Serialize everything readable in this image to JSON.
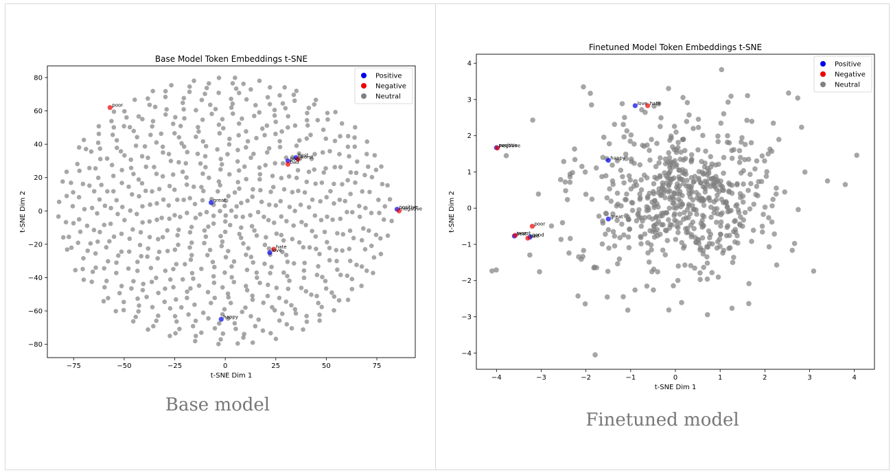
{
  "captions": {
    "left": "Base model",
    "right": "Finetuned model"
  },
  "colors": {
    "positive": "#0000ee",
    "negative": "#ee0000",
    "neutral": "#808080"
  },
  "chart_data": [
    {
      "type": "scatter",
      "title": "Base Model Token Embeddings t-SNE",
      "xlabel": "t-SNE Dim 1",
      "ylabel": "t-SNE Dim 2",
      "xlim": [
        -88,
        94
      ],
      "ylim": [
        -88,
        87
      ],
      "xticks": [
        -75,
        -50,
        -25,
        0,
        25,
        50,
        75
      ],
      "yticks": [
        -80,
        -60,
        -40,
        -20,
        0,
        20,
        40,
        60,
        80
      ],
      "legend": {
        "position": "top-right",
        "entries": [
          "Positive",
          "Negative",
          "Neutral"
        ]
      },
      "neutral_cloud": {
        "shape": "concentric-rings",
        "center": [
          0,
          0
        ],
        "radius_x": 82,
        "radius_y": 80,
        "count": 620
      },
      "highlighted": [
        {
          "label": "poor",
          "class": "Negative",
          "x": -57,
          "y": 62
        },
        {
          "label": "best",
          "class": "Positive",
          "x": 35,
          "y": 32
        },
        {
          "label": "worst",
          "class": "Negative",
          "x": 36,
          "y": 31
        },
        {
          "label": "good",
          "class": "Positive",
          "x": 31,
          "y": 30
        },
        {
          "label": "bad",
          "class": "Negative",
          "x": 31,
          "y": 28
        },
        {
          "label": "great",
          "class": "Positive",
          "x": -7,
          "y": 5
        },
        {
          "label": "positive",
          "class": "Positive",
          "x": 85,
          "y": 1
        },
        {
          "label": "negative",
          "class": "Negative",
          "x": 86,
          "y": 0
        },
        {
          "label": "hate",
          "class": "Negative",
          "x": 24,
          "y": -23
        },
        {
          "label": "love",
          "class": "Positive",
          "x": 22,
          "y": -25
        },
        {
          "label": "happy",
          "class": "Positive",
          "x": -2,
          "y": -65
        }
      ]
    },
    {
      "type": "scatter",
      "title": "Finetuned Model Token Embeddings t-SNE",
      "xlabel": "t-SNE Dim 1",
      "ylabel": "t-SNE Dim 2",
      "xlim": [
        -4.45,
        4.45
      ],
      "ylim": [
        -4.45,
        4.25
      ],
      "xticks": [
        -4,
        -3,
        -2,
        -1,
        0,
        1,
        2,
        3,
        4
      ],
      "yticks": [
        -4,
        -3,
        -2,
        -1,
        0,
        1,
        2,
        3,
        4
      ],
      "legend": {
        "position": "top-right",
        "entries": [
          "Positive",
          "Negative",
          "Neutral"
        ]
      },
      "neutral_cloud": {
        "shape": "gaussian-blob",
        "center": [
          0.3,
          0.4
        ],
        "count": 640
      },
      "highlighted": [
        {
          "label": "love",
          "class": "Positive",
          "x": -0.9,
          "y": 2.83
        },
        {
          "label": "hate",
          "class": "Negative",
          "x": -0.62,
          "y": 2.83
        },
        {
          "label": "positive",
          "class": "Positive",
          "x": -4.0,
          "y": 1.67
        },
        {
          "label": "negative",
          "class": "Negative",
          "x": -3.98,
          "y": 1.66
        },
        {
          "label": "happy",
          "class": "Positive",
          "x": -1.5,
          "y": 1.32
        },
        {
          "label": "great",
          "class": "Positive",
          "x": -1.5,
          "y": -0.3
        },
        {
          "label": "poor",
          "class": "Negative",
          "x": -3.2,
          "y": -0.5
        },
        {
          "label": "best",
          "class": "Positive",
          "x": -3.6,
          "y": -0.77
        },
        {
          "label": "worst",
          "class": "Negative",
          "x": -3.58,
          "y": -0.75
        },
        {
          "label": "good",
          "class": "Positive",
          "x": -3.25,
          "y": -0.8
        },
        {
          "label": "bad",
          "class": "Negative",
          "x": -3.3,
          "y": -0.83
        }
      ]
    }
  ]
}
